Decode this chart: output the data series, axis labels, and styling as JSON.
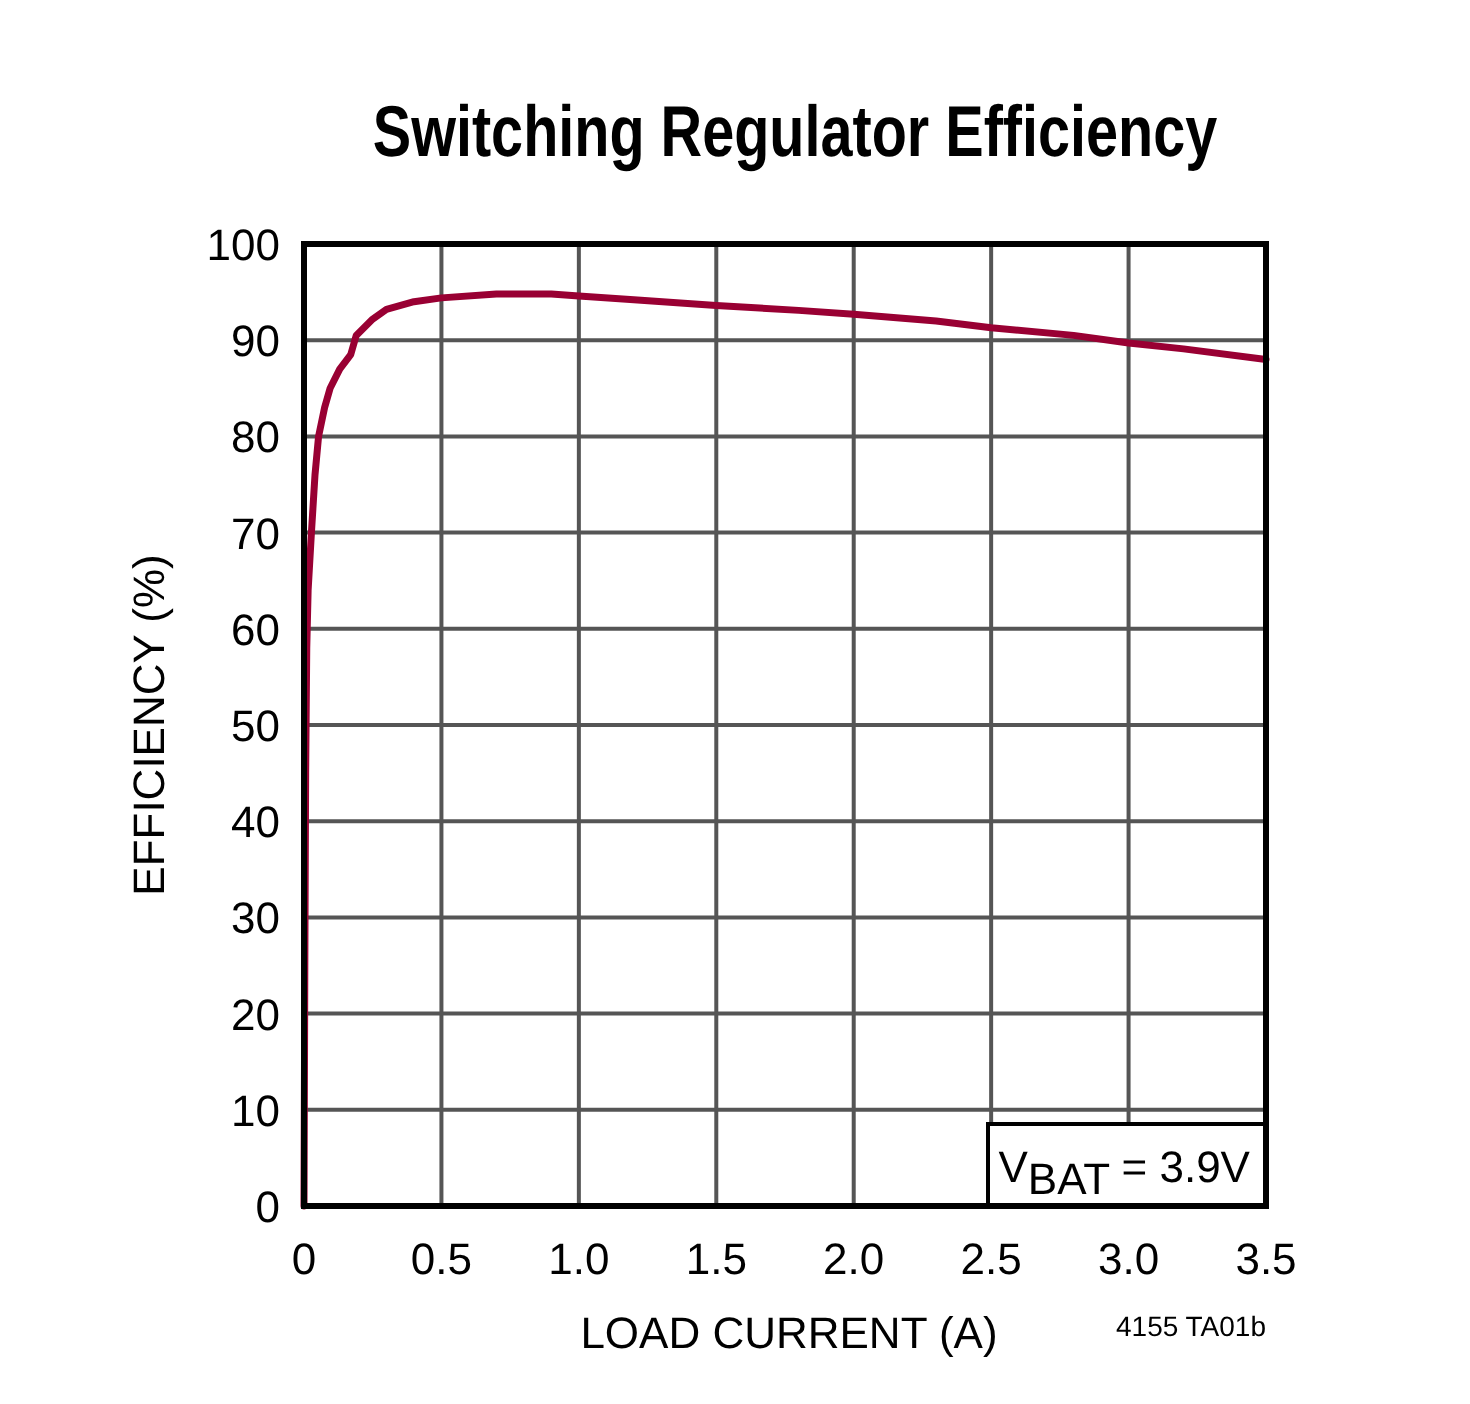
{
  "chart_data": {
    "type": "line",
    "title": "Switching Regulator Efficiency",
    "xlabel": "LOAD CURRENT (A)",
    "ylabel": "EFFICIENCY (%)",
    "x": [
      0,
      0.003,
      0.006,
      0.01,
      0.015,
      0.027,
      0.04,
      0.053,
      0.075,
      0.095,
      0.13,
      0.17,
      0.19,
      0.25,
      0.3,
      0.4,
      0.5,
      0.7,
      0.9,
      1.0,
      1.2,
      1.5,
      1.8,
      2.0,
      2.3,
      2.5,
      2.8,
      3.0,
      3.2,
      3.5
    ],
    "series": [
      {
        "color": "#990033",
        "values": [
          0,
          25,
          45,
          58,
          64,
          70,
          76,
          80,
          83,
          85,
          87,
          88.5,
          90.5,
          92.2,
          93.2,
          94,
          94.4,
          94.8,
          94.8,
          94.6,
          94.2,
          93.6,
          93.1,
          92.7,
          92,
          91.3,
          90.5,
          89.7,
          89.1,
          88
        ]
      }
    ],
    "xlim": [
      0,
      3.5
    ],
    "xticks": [
      {
        "value": 0,
        "label": "0"
      },
      {
        "value": 0.5,
        "label": "0.5"
      },
      {
        "value": 1,
        "label": "1.0"
      },
      {
        "value": 1.5,
        "label": "1.5"
      },
      {
        "value": 2,
        "label": "2.0"
      },
      {
        "value": 2.5,
        "label": "2.5"
      },
      {
        "value": 3,
        "label": "3.0"
      },
      {
        "value": 3.5,
        "label": "3.5"
      }
    ],
    "ylim": [
      0,
      100
    ],
    "yticks": [
      0,
      10,
      20,
      30,
      40,
      50,
      60,
      70,
      80,
      90,
      100
    ],
    "grid": true,
    "line_style": "solid",
    "annotations": [
      "V$_{BAT}$ = 3.9V",
      "4155 TA01b"
    ]
  }
}
